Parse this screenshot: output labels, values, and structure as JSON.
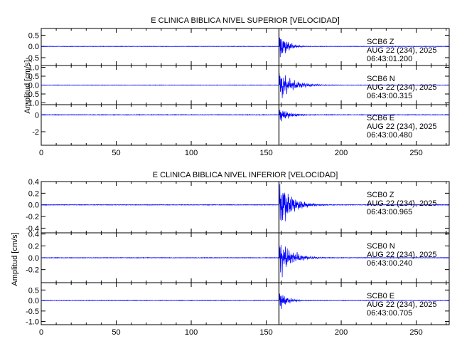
{
  "colors": {
    "trace": "#0000ff",
    "axis": "#000000",
    "background": "#ffffff"
  },
  "chart_data": [
    {
      "type": "line",
      "title": "E CLINICA BIBLICA NIVEL SUPERIOR [VELOCIDAD]",
      "ylabel": "Amplitud [cm/s]",
      "xlim": [
        0,
        272
      ],
      "x_ticks": [
        "0",
        "50",
        "100",
        "150",
        "200",
        "250"
      ],
      "arrival_x": 158.5,
      "panels": [
        {
          "station": "SCB6",
          "component": "Z",
          "date": "AUG 22 (234), 2025",
          "time": "06:43:01.200",
          "ylim": [
            -0.85,
            0.8
          ],
          "y_ticks": [
            "0.5",
            "0.0",
            "-0.5"
          ],
          "peak": 0.75,
          "noise": 0.008,
          "decay": 4.5,
          "wave_periods": [
            0.5,
            1.2,
            2.6
          ]
        },
        {
          "station": "SCB6",
          "component": "N",
          "date": "AUG 22 (234), 2025",
          "time": "06:43:00.315",
          "ylim": [
            -1.1,
            1.1
          ],
          "y_ticks": [
            "1.0",
            "0.5",
            "0.0",
            "-0.5",
            "-1.0"
          ],
          "peak": 0.75,
          "noise": 0.01,
          "decay": 9.0,
          "wave_periods": [
            0.6,
            1.4,
            3.1
          ]
        },
        {
          "station": "SCB6",
          "component": "E",
          "date": "AUG 22 (234), 2025",
          "time": "06:43:00.480",
          "ylim": [
            -3.6,
            1.2
          ],
          "y_ticks": [
            "0",
            "-2"
          ],
          "peak": 1.0,
          "noise": 0.03,
          "decay": 5.5,
          "wave_periods": [
            0.5,
            1.1,
            2.4
          ]
        }
      ]
    },
    {
      "type": "line",
      "title": "E CLINICA BIBLICA NIVEL INFERIOR [VELOCIDAD]",
      "ylabel": "Amplitud [cm/s]",
      "xlim": [
        0,
        272
      ],
      "x_ticks": [
        "0",
        "50",
        "100",
        "150",
        "200",
        "250"
      ],
      "arrival_x": 158.5,
      "panels": [
        {
          "station": "SCB0",
          "component": "Z",
          "date": "AUG 22 (234), 2025",
          "time": "06:43:00.965",
          "ylim": [
            -0.48,
            0.4
          ],
          "y_ticks": [
            "0.4",
            "0.2",
            "0.0",
            "-0.2",
            "-0.4"
          ],
          "peak": 0.38,
          "noise": 0.004,
          "decay": 8.0,
          "wave_periods": [
            0.5,
            1.2,
            2.8
          ]
        },
        {
          "station": "SCB0",
          "component": "N",
          "date": "AUG 22 (234), 2025",
          "time": "06:43:00.240",
          "ylim": [
            -0.42,
            0.42
          ],
          "y_ticks": [
            "0.4",
            "0.2",
            "0.0",
            "-0.2"
          ],
          "peak": 0.3,
          "noise": 0.004,
          "decay": 8.0,
          "wave_periods": [
            0.6,
            1.3,
            2.9
          ]
        },
        {
          "station": "SCB0",
          "component": "E",
          "date": "AUG 22 (234), 2025",
          "time": "06:43:00.705",
          "ylim": [
            -1.15,
            0.85
          ],
          "y_ticks": [
            "0.5",
            "0.0",
            "-0.5",
            "-1.0"
          ],
          "peak": 0.45,
          "noise": 0.01,
          "decay": 5.0,
          "wave_periods": [
            0.5,
            1.1,
            2.5
          ]
        }
      ]
    }
  ]
}
